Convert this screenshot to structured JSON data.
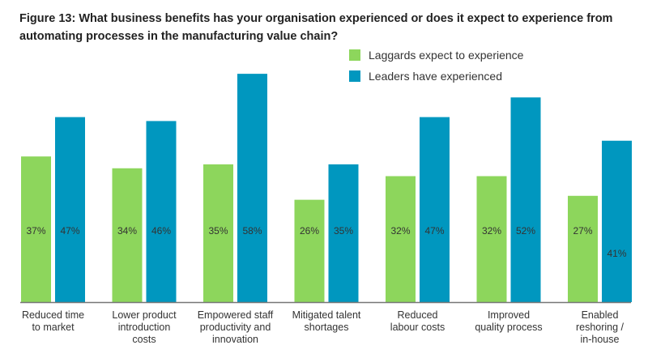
{
  "chart_data": {
    "type": "bar",
    "title": "Figure 13: What business benefits has your organisation experienced or does it expect to experience from automating processes in the manufacturing value chain?",
    "categories": [
      [
        "Reduced time",
        "to market"
      ],
      [
        "Lower product",
        "introduction",
        "costs"
      ],
      [
        "Empowered staff",
        "productivity and",
        "innovation"
      ],
      [
        "Mitigated talent",
        "shortages"
      ],
      [
        "Reduced",
        "labour costs"
      ],
      [
        "Improved",
        "quality process"
      ],
      [
        "Enabled",
        "reshoring /",
        "in-house"
      ]
    ],
    "series": [
      {
        "name": "Laggards expect to experience",
        "color": "#8dd65c",
        "values": [
          37,
          34,
          35,
          26,
          32,
          32,
          27
        ]
      },
      {
        "name": "Leaders have experienced",
        "color": "#0097bf",
        "values": [
          47,
          46,
          58,
          35,
          47,
          52,
          41
        ]
      }
    ],
    "unit": "%",
    "legend": "top-right",
    "grid": false
  }
}
